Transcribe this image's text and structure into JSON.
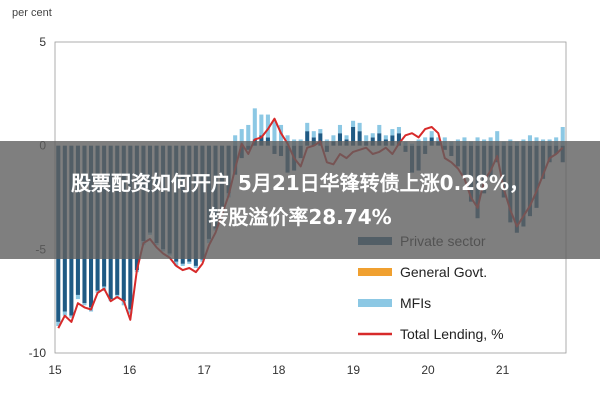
{
  "chart_data": {
    "type": "bar",
    "title": "",
    "ylabel": "per cent",
    "ylim": [
      -10,
      5
    ],
    "yticks": [
      5,
      0,
      -5,
      -10
    ],
    "xticks": [
      "15",
      "16",
      "17",
      "18",
      "19",
      "20",
      "21"
    ],
    "x_start": 2015,
    "x_end": 2021.85,
    "grid": false,
    "legend_position": "lower-right",
    "series": [
      {
        "name": "Private sector",
        "kind": "stacked-bar",
        "color": "#1f5a84",
        "values": [
          -8.5,
          -8.0,
          -8.2,
          -7.2,
          -7.6,
          -7.8,
          -7.0,
          -6.8,
          -7.4,
          -7.2,
          -7.5,
          -7.9,
          -6.0,
          -4.6,
          -4.2,
          -4.7,
          -5.0,
          -5.2,
          -5.6,
          -5.7,
          -5.6,
          -5.8,
          -5.5,
          -4.5,
          -4.0,
          -3.2,
          -2.3,
          -1.4,
          -0.6,
          -0.2,
          0.3,
          0.5,
          0.4,
          -0.4,
          -0.5,
          -1.3,
          -1.2,
          -0.6,
          0.7,
          0.4,
          0.6,
          -0.3,
          0.2,
          0.6,
          0.3,
          0.9,
          0.7,
          0.2,
          0.4,
          0.6,
          0.3,
          0.5,
          0.6,
          -0.3,
          -1.3,
          -1.2,
          -0.4,
          0.4,
          0.2,
          -0.2,
          -0.5,
          -1.0,
          -1.5,
          -2.7,
          -3.5,
          -2.3,
          -1.5,
          -0.8,
          -2.5,
          -3.7,
          -4.2,
          -3.9,
          -3.4,
          -3.0,
          -1.6,
          -0.8,
          -0.4,
          -0.8
        ]
      },
      {
        "name": "General Govt.",
        "kind": "stacked-bar",
        "color": "#f0a030",
        "values": []
      },
      {
        "name": "MFIs",
        "kind": "stacked-bar",
        "color": "#8cc8e4",
        "values": [
          -0.2,
          -0.2,
          -0.1,
          -0.2,
          -0.1,
          -0.2,
          -0.1,
          -0.2,
          -0.1,
          -0.1,
          -0.2,
          -0.2,
          -0.1,
          -0.2,
          -0.1,
          -0.1,
          -0.1,
          -0.1,
          -0.2,
          -0.1,
          -0.1,
          -0.1,
          -0.1,
          -0.2,
          -0.1,
          -0.1,
          -0.2,
          0.5,
          0.8,
          1.0,
          1.5,
          1.0,
          1.1,
          1.2,
          1.0,
          0.5,
          0.3,
          0.3,
          0.4,
          0.3,
          0.2,
          0.3,
          0.3,
          0.4,
          0.2,
          0.3,
          0.4,
          0.3,
          0.2,
          0.4,
          0.2,
          0.3,
          0.3,
          0.2,
          0.1,
          0.3,
          0.4,
          0.3,
          0.2,
          0.4,
          0.2,
          0.3,
          0.4,
          0.2,
          0.4,
          0.3,
          0.4,
          0.7,
          0.2,
          0.3,
          0.2,
          0.3,
          0.5,
          0.4,
          0.3,
          0.3,
          0.4,
          0.9
        ]
      },
      {
        "name": "Total Lending, %",
        "kind": "line",
        "color": "#d72a2a",
        "values": [
          -8.8,
          -8.2,
          -8.5,
          -7.6,
          -7.8,
          -7.9,
          -7.1,
          -6.9,
          -7.5,
          -7.3,
          -7.5,
          -8.4,
          -6.0,
          -4.7,
          -4.5,
          -4.9,
          -5.2,
          -5.4,
          -5.8,
          -6.0,
          -5.9,
          -6.1,
          -5.7,
          -4.8,
          -4.2,
          -3.3,
          -2.4,
          -1.1,
          0.1,
          -0.4,
          0.3,
          0.4,
          0.8,
          1.3,
          0.6,
          0.1,
          -0.6,
          -1.0,
          -0.1,
          0.0,
          0.2,
          -0.8,
          -0.9,
          -0.4,
          -0.6,
          -0.3,
          -0.2,
          -0.1,
          -0.4,
          -0.3,
          -0.1,
          -0.4,
          0.1,
          0.5,
          0.6,
          0.4,
          0.8,
          0.9,
          0.6,
          -0.6,
          -0.8,
          -1.1,
          -1.6,
          -2.5,
          -3.0,
          -1.7,
          -1.2,
          -0.5,
          -2.1,
          -3.1,
          -3.9,
          -3.4,
          -2.9,
          -2.2,
          -1.4,
          -0.6,
          -0.4,
          -0.1
        ]
      }
    ]
  },
  "banner": {
    "line1": "股票配资如何开户 5月21日华锋转债上涨0.28%，",
    "line2": "转股溢价率28.74%"
  }
}
